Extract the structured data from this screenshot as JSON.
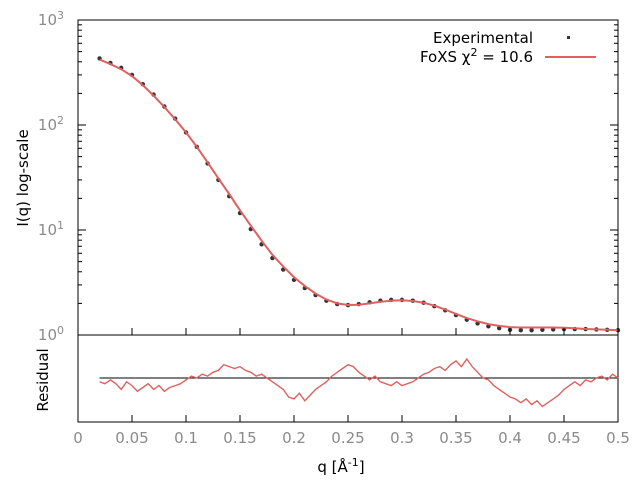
{
  "chart_data": [
    {
      "type": "scatter",
      "panel": "main",
      "ylabel": "I(q) log-scale",
      "yscale": "log",
      "xlim": [
        0,
        0.5
      ],
      "ylim": [
        1,
        1000
      ],
      "grid": false,
      "legend_position": "top-right",
      "y_tick_labels": [
        {
          "base": "10",
          "exp": "0",
          "value": 1
        },
        {
          "base": "10",
          "exp": "1",
          "value": 10
        },
        {
          "base": "10",
          "exp": "2",
          "value": 100
        },
        {
          "base": "10",
          "exp": "3",
          "value": 1000
        }
      ],
      "series": [
        {
          "name": "Experimental",
          "style": "points",
          "color": "#333333",
          "x": [
            0.02,
            0.03,
            0.04,
            0.05,
            0.06,
            0.07,
            0.08,
            0.09,
            0.1,
            0.11,
            0.12,
            0.13,
            0.14,
            0.15,
            0.16,
            0.17,
            0.18,
            0.19,
            0.2,
            0.21,
            0.22,
            0.23,
            0.24,
            0.25,
            0.26,
            0.27,
            0.28,
            0.29,
            0.3,
            0.31,
            0.32,
            0.33,
            0.34,
            0.35,
            0.36,
            0.37,
            0.38,
            0.39,
            0.4,
            0.41,
            0.42,
            0.43,
            0.44,
            0.45,
            0.46,
            0.47,
            0.48,
            0.49,
            0.5
          ],
          "y": [
            430,
            390,
            350,
            300,
            245,
            195,
            150,
            115,
            85,
            62,
            43,
            30,
            21,
            14.5,
            10.2,
            7.3,
            5.4,
            4.2,
            3.35,
            2.8,
            2.4,
            2.12,
            1.97,
            1.93,
            1.97,
            2.05,
            2.12,
            2.16,
            2.16,
            2.12,
            2.03,
            1.88,
            1.72,
            1.55,
            1.4,
            1.29,
            1.21,
            1.16,
            1.12,
            1.11,
            1.11,
            1.12,
            1.13,
            1.14,
            1.14,
            1.14,
            1.13,
            1.12,
            1.11
          ]
        },
        {
          "name": "FoXS χ² = 10.6",
          "legend_main": "FoXS χ",
          "legend_sup": "2",
          "legend_tail": " = 10.6",
          "style": "line",
          "color": "#e06060",
          "x": [
            0.02,
            0.03,
            0.04,
            0.05,
            0.06,
            0.07,
            0.08,
            0.09,
            0.1,
            0.11,
            0.12,
            0.13,
            0.14,
            0.15,
            0.16,
            0.17,
            0.18,
            0.19,
            0.2,
            0.21,
            0.22,
            0.23,
            0.24,
            0.25,
            0.26,
            0.27,
            0.28,
            0.29,
            0.3,
            0.31,
            0.32,
            0.33,
            0.34,
            0.35,
            0.36,
            0.37,
            0.38,
            0.39,
            0.4,
            0.41,
            0.42,
            0.43,
            0.44,
            0.45,
            0.46,
            0.47,
            0.48,
            0.49,
            0.5
          ],
          "y": [
            420,
            380,
            340,
            292,
            240,
            190,
            148,
            113,
            85,
            62,
            44,
            31,
            22,
            15.4,
            11.0,
            7.9,
            5.8,
            4.5,
            3.55,
            2.93,
            2.48,
            2.18,
            2.0,
            1.93,
            1.94,
            2.0,
            2.07,
            2.12,
            2.14,
            2.11,
            2.03,
            1.9,
            1.75,
            1.59,
            1.45,
            1.35,
            1.27,
            1.22,
            1.19,
            1.18,
            1.18,
            1.18,
            1.18,
            1.17,
            1.16,
            1.14,
            1.13,
            1.12,
            1.11
          ]
        }
      ]
    },
    {
      "type": "line",
      "panel": "residual",
      "xlabel_main": "q [Å",
      "xlabel_sup": "-1",
      "xlabel_tail": "]",
      "ylabel": "Residual",
      "xlim": [
        0,
        0.5
      ],
      "x_ticks": [
        "0",
        "0.05",
        "0.1",
        "0.15",
        "0.2",
        "0.25",
        "0.3",
        "0.35",
        "0.4",
        "0.45",
        "0.5"
      ],
      "reference_line": 0,
      "series": [
        {
          "name": "",
          "color": "#e06060",
          "x": [
            0.02,
            0.025,
            0.03,
            0.035,
            0.04,
            0.045,
            0.05,
            0.055,
            0.06,
            0.065,
            0.07,
            0.075,
            0.08,
            0.085,
            0.09,
            0.095,
            0.1,
            0.105,
            0.11,
            0.115,
            0.12,
            0.125,
            0.13,
            0.135,
            0.14,
            0.145,
            0.15,
            0.155,
            0.16,
            0.165,
            0.17,
            0.175,
            0.18,
            0.185,
            0.19,
            0.195,
            0.2,
            0.205,
            0.21,
            0.215,
            0.22,
            0.225,
            0.23,
            0.235,
            0.24,
            0.245,
            0.25,
            0.255,
            0.26,
            0.265,
            0.27,
            0.275,
            0.28,
            0.285,
            0.29,
            0.295,
            0.3,
            0.305,
            0.31,
            0.315,
            0.32,
            0.325,
            0.33,
            0.335,
            0.34,
            0.345,
            0.35,
            0.355,
            0.36,
            0.365,
            0.37,
            0.375,
            0.38,
            0.385,
            0.39,
            0.395,
            0.4,
            0.405,
            0.41,
            0.415,
            0.42,
            0.425,
            0.43,
            0.435,
            0.44,
            0.445,
            0.45,
            0.455,
            0.46,
            0.465,
            0.47,
            0.475,
            0.48,
            0.485,
            0.49,
            0.495,
            0.5
          ],
          "y": [
            -0.1,
            -0.15,
            -0.05,
            -0.15,
            -0.3,
            -0.1,
            -0.2,
            -0.35,
            -0.25,
            -0.15,
            -0.3,
            -0.2,
            -0.35,
            -0.25,
            -0.2,
            -0.15,
            -0.05,
            0.05,
            0.0,
            0.1,
            0.05,
            0.15,
            0.2,
            0.35,
            0.3,
            0.25,
            0.3,
            0.2,
            0.15,
            0.05,
            0.1,
            0.0,
            -0.1,
            -0.2,
            -0.3,
            -0.5,
            -0.55,
            -0.4,
            -0.6,
            -0.45,
            -0.3,
            -0.2,
            -0.1,
            0.05,
            0.15,
            0.25,
            0.35,
            0.3,
            0.15,
            0.05,
            -0.05,
            0.05,
            -0.1,
            -0.15,
            -0.2,
            -0.1,
            -0.2,
            -0.15,
            -0.1,
            0.0,
            0.1,
            0.15,
            0.25,
            0.3,
            0.2,
            0.35,
            0.45,
            0.3,
            0.5,
            0.3,
            0.15,
            0.0,
            -0.05,
            -0.2,
            -0.3,
            -0.4,
            -0.5,
            -0.55,
            -0.65,
            -0.55,
            -0.7,
            -0.6,
            -0.75,
            -0.65,
            -0.55,
            -0.45,
            -0.3,
            -0.2,
            -0.1,
            -0.2,
            -0.05,
            -0.1,
            0.0,
            0.05,
            -0.05,
            0.1,
            0.0
          ]
        }
      ]
    }
  ]
}
